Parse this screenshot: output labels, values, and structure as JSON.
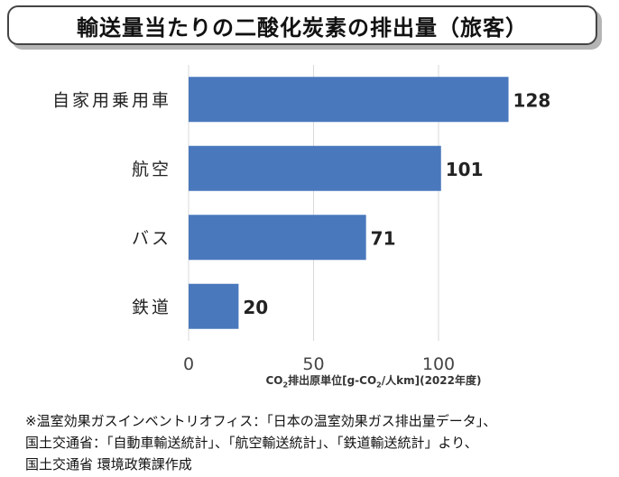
{
  "title": "輸送量当たりの二酸化炭素の排出量（旅客）",
  "chart_data": {
    "type": "bar",
    "orientation": "horizontal",
    "categories": [
      "自家用乗用車",
      "航空",
      "バス",
      "鉄道"
    ],
    "values": [
      128,
      101,
      71,
      20
    ],
    "data_labels": [
      "128",
      "101",
      "71",
      "20"
    ],
    "xlim": [
      0,
      100
    ],
    "xticks": [
      0,
      50,
      100
    ],
    "xtick_labels": [
      "0",
      "50",
      "100"
    ],
    "xlabel_parts": {
      "pre": "CO",
      "sub1": "2",
      "mid": "排出原単位[g-CO",
      "sub2": "2",
      "post": "/人km](2022年度)"
    },
    "grid": "vertical",
    "legend": "none",
    "bar_color": "#4a78bd",
    "grid_color": "#d9d9d9"
  },
  "footnote": {
    "lines": [
      "※温室効果ガスインベントリオフィス：「日本の温室効果ガス排出量データ」、",
      "国土交通省：「自動車輸送統計」、「航空輸送統計」、「鉄道輸送統計」より、",
      "国土交通省 環境政策課作成"
    ]
  }
}
